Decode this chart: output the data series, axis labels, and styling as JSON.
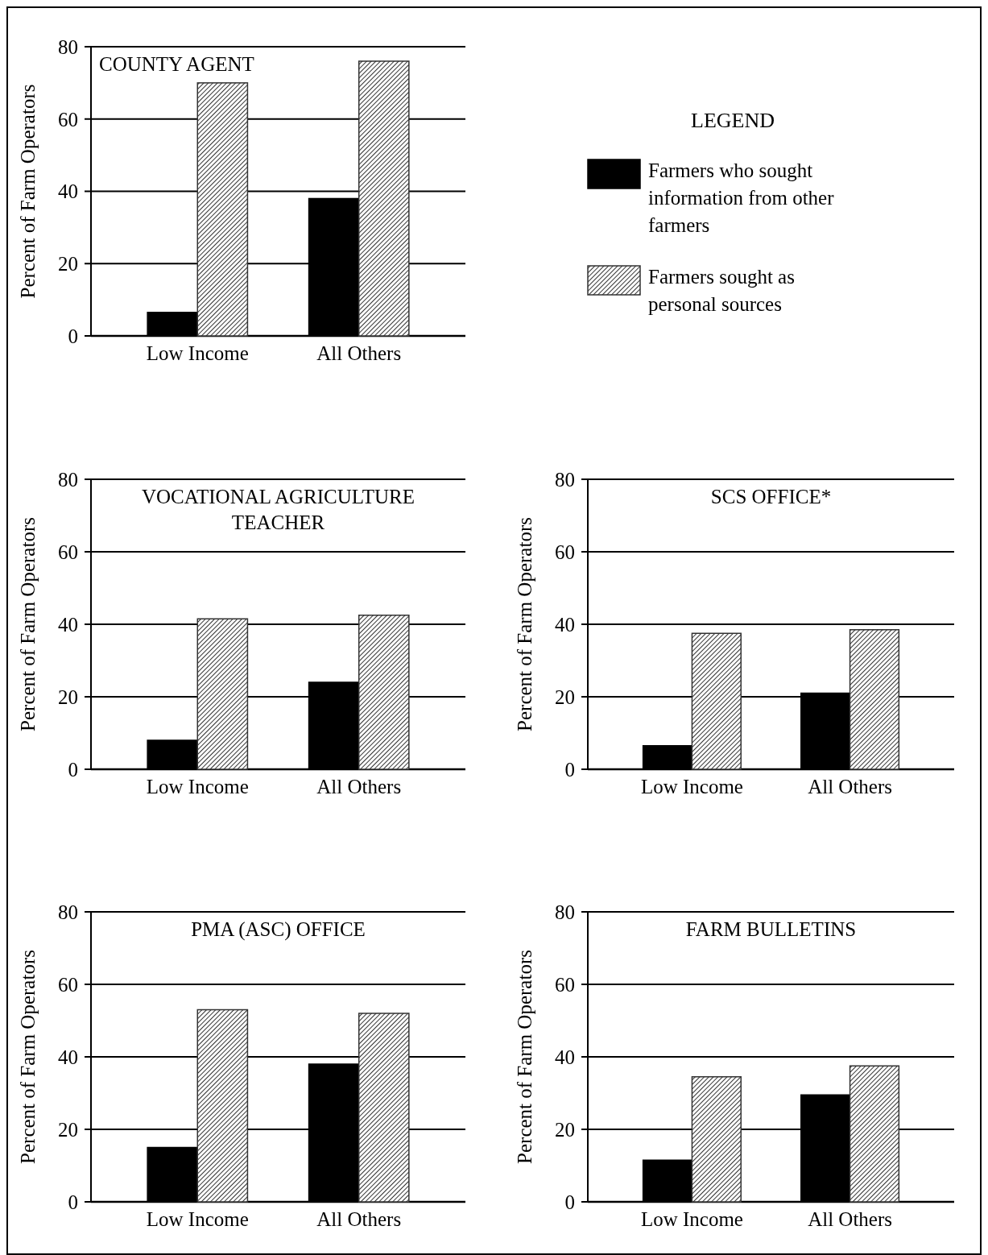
{
  "chart_data": [
    {
      "type": "bar",
      "title": "COUNTY AGENT",
      "ylabel": "Percent of Farm Operators",
      "categories": [
        "Low Income",
        "All Others"
      ],
      "ylim": [
        0,
        80
      ],
      "yticks": [
        0,
        20,
        40,
        60,
        80
      ],
      "grid": "y",
      "legend": "right",
      "legend_title": "LEGEND",
      "series": [
        {
          "name": "Farmers who sought information from other farmers",
          "color": "#000000",
          "values": [
            6.5,
            38
          ]
        },
        {
          "name": "Farmers sought as personal sources",
          "color": "#333333",
          "values": [
            70,
            76
          ]
        }
      ]
    },
    {
      "type": "bar",
      "title": "VOCATIONAL AGRICULTURE TEACHER",
      "ylabel": "Percent of Farm Operators",
      "categories": [
        "Low Income",
        "All Others"
      ],
      "ylim": [
        0,
        80
      ],
      "yticks": [
        0,
        20,
        40,
        60,
        80
      ],
      "grid": "y",
      "series": [
        {
          "color": "#000000",
          "values": [
            8,
            24
          ]
        },
        {
          "color": "#333333",
          "values": [
            41.5,
            42.5
          ]
        }
      ]
    },
    {
      "type": "bar",
      "title": "SCS OFFICE*",
      "ylabel": "Percent of Farm Operators",
      "categories": [
        "Low Income",
        "All Others"
      ],
      "ylim": [
        0,
        80
      ],
      "yticks": [
        0,
        20,
        40,
        60,
        80
      ],
      "grid": "y",
      "series": [
        {
          "color": "#000000",
          "values": [
            6.5,
            21
          ]
        },
        {
          "color": "#333333",
          "values": [
            37.5,
            38.5
          ]
        }
      ]
    },
    {
      "type": "bar",
      "title": "PMA (ASC) OFFICE",
      "ylabel": "Percent of Farm Operators",
      "categories": [
        "Low Income",
        "All Others"
      ],
      "ylim": [
        0,
        80
      ],
      "yticks": [
        0,
        20,
        40,
        60,
        80
      ],
      "grid": "y",
      "series": [
        {
          "color": "#000000",
          "values": [
            15,
            38
          ]
        },
        {
          "color": "#333333",
          "values": [
            53,
            52
          ]
        }
      ]
    },
    {
      "type": "bar",
      "title": "FARM BULLETINS",
      "ylabel": "Percent of Farm Operators",
      "categories": [
        "Low Income",
        "All Others"
      ],
      "ylim": [
        0,
        80
      ],
      "yticks": [
        0,
        20,
        40,
        60,
        80
      ],
      "grid": "y",
      "series": [
        {
          "color": "#000000",
          "values": [
            11.5,
            29.5
          ]
        },
        {
          "color": "#333333",
          "values": [
            34.5,
            37.5
          ]
        }
      ]
    }
  ]
}
